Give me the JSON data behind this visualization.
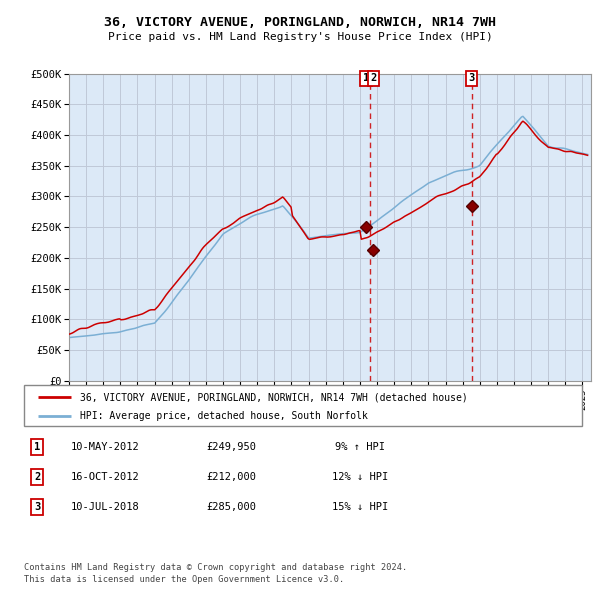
{
  "title": "36, VICTORY AVENUE, PORINGLAND, NORWICH, NR14 7WH",
  "subtitle": "Price paid vs. HM Land Registry's House Price Index (HPI)",
  "legend_label_red": "36, VICTORY AVENUE, PORINGLAND, NORWICH, NR14 7WH (detached house)",
  "legend_label_blue": "HPI: Average price, detached house, South Norfolk",
  "ylim": [
    0,
    500000
  ],
  "yticks": [
    0,
    50000,
    100000,
    150000,
    200000,
    250000,
    300000,
    350000,
    400000,
    450000,
    500000
  ],
  "ytick_labels": [
    "£0",
    "£50K",
    "£100K",
    "£150K",
    "£200K",
    "£250K",
    "£300K",
    "£350K",
    "£400K",
    "£450K",
    "£500K"
  ],
  "xlim_start": 1995.0,
  "xlim_end": 2025.5,
  "transactions": [
    {
      "id": 1,
      "date_num": 2012.36,
      "price": 249950
    },
    {
      "id": 2,
      "date_num": 2012.79,
      "price": 212000
    },
    {
      "id": 3,
      "date_num": 2018.52,
      "price": 285000
    }
  ],
  "transaction_table": [
    {
      "num": "1",
      "date": "10-MAY-2012",
      "price": "£249,950",
      "pct": "9% ↑ HPI"
    },
    {
      "num": "2",
      "date": "16-OCT-2012",
      "price": "£212,000",
      "pct": "12% ↓ HPI"
    },
    {
      "num": "3",
      "date": "10-JUL-2018",
      "price": "£285,000",
      "pct": "15% ↓ HPI"
    }
  ],
  "footer": "Contains HM Land Registry data © Crown copyright and database right 2024.\nThis data is licensed under the Open Government Licence v3.0.",
  "bg_color": "#dce9f7",
  "grid_color": "#c0c8d8",
  "red_color": "#cc0000",
  "blue_color": "#7bafd4",
  "vline_color": "#cc0000"
}
